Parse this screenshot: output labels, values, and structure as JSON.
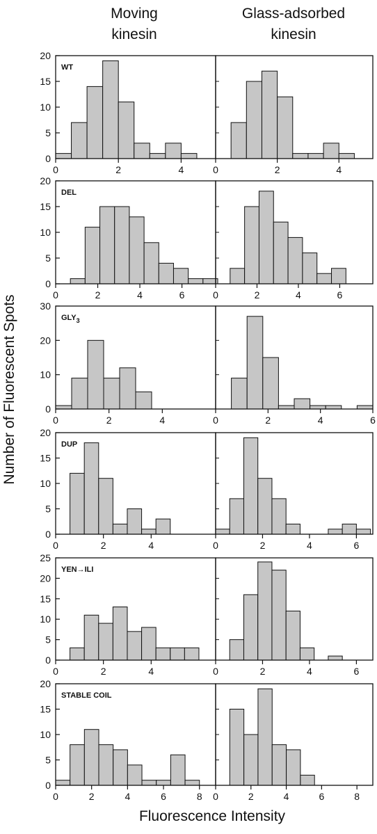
{
  "figure": {
    "column_headers": [
      {
        "line1": "Moving",
        "line2": "kinesin"
      },
      {
        "line1": "Glass-adsorbed",
        "line2": "kinesin"
      }
    ],
    "ylabel": "Number of Fluorescent Spots",
    "xlabel": "Fluorescence Intensity",
    "bar_color": "#c6c6c6",
    "edge_color": "#111111"
  },
  "chart_data": [
    {
      "type": "bar",
      "row_label": "WT",
      "ylim": [
        0,
        20
      ],
      "yticks": [
        0,
        5,
        10,
        15,
        20
      ],
      "panels": [
        {
          "column": "Moving kinesin",
          "xlim": [
            0,
            5.1
          ],
          "xticks": [
            0,
            2,
            4
          ],
          "bin_width": 0.5,
          "bin_starts": [
            0,
            0.5,
            1,
            1.5,
            2,
            2.5,
            3,
            3.5,
            4
          ],
          "values": [
            1,
            7,
            14,
            19,
            11,
            3,
            1,
            3,
            1
          ]
        },
        {
          "column": "Glass-adsorbed kinesin",
          "xlim": [
            0,
            5.1
          ],
          "xticks": [
            0,
            2,
            4
          ],
          "bin_width": 0.5,
          "bin_starts": [
            0.5,
            1,
            1.5,
            2,
            2.5,
            3,
            3.5,
            4
          ],
          "values": [
            7,
            15,
            17,
            12,
            1,
            1,
            3,
            1
          ]
        }
      ]
    },
    {
      "type": "bar",
      "row_label": "DEL",
      "ylim": [
        0,
        20
      ],
      "yticks": [
        0,
        5,
        10,
        15,
        20
      ],
      "panels": [
        {
          "column": "Moving kinesin",
          "xlim": [
            0,
            7.6
          ],
          "xticks": [
            0,
            2,
            4,
            6
          ],
          "bin_width": 0.7,
          "bin_starts": [
            0.7,
            1.4,
            2.1,
            2.8,
            3.5,
            4.2,
            4.9,
            5.6,
            6.3,
            7.0
          ],
          "values": [
            1,
            11,
            15,
            15,
            13,
            8,
            4,
            3,
            1,
            1
          ]
        },
        {
          "column": "Glass-adsorbed kinesin",
          "xlim": [
            0,
            7.6
          ],
          "xticks": [
            0,
            2,
            4,
            6
          ],
          "bin_width": 0.7,
          "bin_starts": [
            0.7,
            1.4,
            2.1,
            2.8,
            3.5,
            4.2,
            4.9,
            5.6
          ],
          "values": [
            3,
            15,
            18,
            12,
            9,
            6,
            2,
            3
          ]
        }
      ]
    },
    {
      "type": "bar",
      "row_label": "GLY",
      "row_label_sub": "3",
      "ylim": [
        0,
        30
      ],
      "yticks": [
        0,
        10,
        20,
        30
      ],
      "panels": [
        {
          "column": "Moving kinesin",
          "xlim": [
            0,
            6
          ],
          "xticks": [
            0,
            2,
            4
          ],
          "bin_width": 0.6,
          "bin_starts": [
            0,
            0.6,
            1.2,
            1.8,
            2.4,
            3.0
          ],
          "values": [
            1,
            9,
            20,
            9,
            12,
            5
          ]
        },
        {
          "column": "Glass-adsorbed kinesin",
          "xlim": [
            0,
            6
          ],
          "xticks": [
            0,
            2,
            4,
            6
          ],
          "bin_width": 0.6,
          "bin_starts": [
            0.6,
            1.2,
            1.8,
            2.4,
            3.0,
            3.6,
            4.2,
            4.8,
            5.4
          ],
          "values": [
            9,
            27,
            15,
            1,
            3,
            1,
            1,
            0,
            1
          ]
        }
      ]
    },
    {
      "type": "bar",
      "row_label": "DUP",
      "ylim": [
        0,
        20
      ],
      "yticks": [
        0,
        5,
        10,
        15,
        20
      ],
      "panels": [
        {
          "column": "Moving kinesin",
          "xlim": [
            0,
            6.7
          ],
          "xticks": [
            0,
            2,
            4
          ],
          "bin_width": 0.6,
          "bin_starts": [
            0.6,
            1.2,
            1.8,
            2.4,
            3.0,
            3.6,
            4.2
          ],
          "values": [
            12,
            18,
            11,
            2,
            5,
            1,
            3
          ]
        },
        {
          "column": "Glass-adsorbed kinesin",
          "xlim": [
            0,
            6.7
          ],
          "xticks": [
            0,
            2,
            4,
            6
          ],
          "bin_width": 0.6,
          "bin_starts": [
            0,
            0.6,
            1.2,
            1.8,
            2.4,
            3.0,
            3.6,
            4.2,
            4.8,
            5.4,
            6.0
          ],
          "values": [
            1,
            7,
            19,
            11,
            7,
            2,
            0,
            0,
            1,
            2,
            1
          ]
        }
      ]
    },
    {
      "type": "bar",
      "row_label": "YEN→ILI",
      "ylim": [
        0,
        25
      ],
      "yticks": [
        0,
        5,
        10,
        15,
        20,
        25
      ],
      "panels": [
        {
          "column": "Moving kinesin",
          "xlim": [
            0,
            6.7
          ],
          "xticks": [
            0,
            2,
            4
          ],
          "bin_width": 0.6,
          "bin_starts": [
            0.6,
            1.2,
            1.8,
            2.4,
            3.0,
            3.6,
            4.2,
            4.8,
            5.4,
            6.0
          ],
          "values": [
            3,
            11,
            9,
            13,
            7,
            8,
            3,
            3,
            3,
            0
          ]
        },
        {
          "column": "Glass-adsorbed kinesin",
          "xlim": [
            0,
            6.7
          ],
          "xticks": [
            0,
            2,
            4,
            6
          ],
          "bin_width": 0.6,
          "bin_starts": [
            0.6,
            1.2,
            1.8,
            2.4,
            3.0,
            3.6,
            4.2,
            4.8
          ],
          "values": [
            5,
            16,
            24,
            22,
            12,
            3,
            0,
            1
          ]
        }
      ]
    },
    {
      "type": "bar",
      "row_label": "STABLE COIL",
      "ylim": [
        0,
        20
      ],
      "yticks": [
        0,
        5,
        10,
        15,
        20
      ],
      "panels": [
        {
          "column": "Moving kinesin",
          "xlim": [
            0,
            8.9
          ],
          "xticks": [
            0,
            2,
            4,
            6,
            8
          ],
          "bin_width": 0.8,
          "bin_starts": [
            0,
            0.8,
            1.6,
            2.4,
            3.2,
            4.0,
            4.8,
            5.6,
            6.4,
            7.2,
            8.0
          ],
          "values": [
            1,
            8,
            11,
            8,
            7,
            4,
            1,
            1,
            6,
            1,
            0
          ]
        },
        {
          "column": "Glass-adsorbed kinesin",
          "xlim": [
            0,
            8.9
          ],
          "xticks": [
            0,
            2,
            4,
            6,
            8
          ],
          "bin_width": 0.8,
          "bin_starts": [
            0.8,
            1.6,
            2.4,
            3.2,
            4.0,
            4.8
          ],
          "values": [
            15,
            10,
            19,
            8,
            7,
            2
          ]
        }
      ]
    }
  ]
}
